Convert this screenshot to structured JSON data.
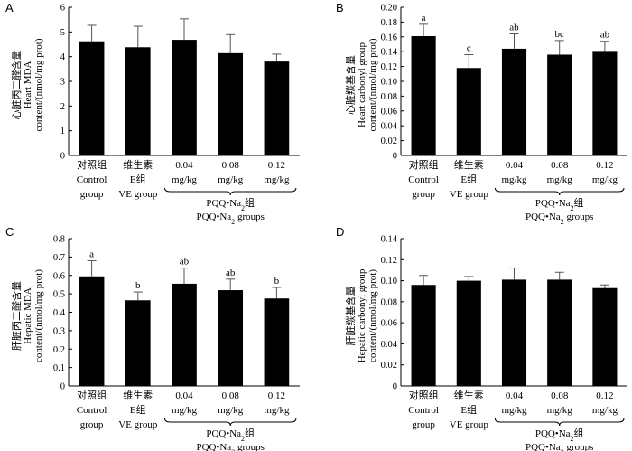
{
  "chart_data": [
    {
      "type": "bar",
      "panel": "A",
      "ylabel": [
        "心脏丙二醛含量",
        "Heart MDA",
        "content/(nmol/mg prot)"
      ],
      "ylim": [
        0,
        6
      ],
      "yticks": [
        0,
        1,
        2,
        3,
        4,
        5,
        6
      ],
      "ytick_labels": [
        "0",
        "1",
        "2",
        "3",
        "4",
        "5",
        "6"
      ],
      "values": [
        4.62,
        4.38,
        4.68,
        4.14,
        3.8
      ],
      "errors": [
        0.65,
        0.85,
        0.85,
        0.75,
        0.3
      ],
      "letters": [
        "",
        "",
        "",
        "",
        ""
      ]
    },
    {
      "type": "bar",
      "panel": "B",
      "ylabel": [
        "心脏羰基含量",
        "Heart carbonyl group",
        "content/(nmol/mg prot)"
      ],
      "ylim": [
        0,
        0.2
      ],
      "yticks": [
        0,
        0.02,
        0.04,
        0.06,
        0.08,
        0.1,
        0.12,
        0.14,
        0.16,
        0.18,
        0.2
      ],
      "ytick_labels": [
        "0",
        "0.02",
        "0.04",
        "0.06",
        "0.08",
        "0.10",
        "0.12",
        "0.14",
        "0.16",
        "0.18",
        "0.20"
      ],
      "values": [
        0.161,
        0.118,
        0.144,
        0.136,
        0.141
      ],
      "errors": [
        0.016,
        0.018,
        0.02,
        0.019,
        0.013
      ],
      "letters": [
        "a",
        "c",
        "ab",
        "bc",
        "ab"
      ]
    },
    {
      "type": "bar",
      "panel": "C",
      "ylabel": [
        "肝脏丙二醛含量",
        "Hepatic MDA",
        "content/(nmol/mg prot)"
      ],
      "ylim": [
        0,
        0.8
      ],
      "yticks": [
        0,
        0.1,
        0.2,
        0.3,
        0.4,
        0.5,
        0.6,
        0.7,
        0.8
      ],
      "ytick_labels": [
        "0",
        "0.1",
        "0.2",
        "0.3",
        "0.4",
        "0.5",
        "0.6",
        "0.7",
        "0.8"
      ],
      "values": [
        0.595,
        0.465,
        0.555,
        0.52,
        0.475
      ],
      "errors": [
        0.085,
        0.045,
        0.085,
        0.06,
        0.06
      ],
      "letters": [
        "a",
        "b",
        "ab",
        "ab",
        "b"
      ]
    },
    {
      "type": "bar",
      "panel": "D",
      "ylabel": [
        "肝脏羰基含量",
        "Hepatic carbonyl group",
        "content/(nmol/mg prot)"
      ],
      "ylim": [
        0,
        0.14
      ],
      "yticks": [
        0,
        0.02,
        0.04,
        0.06,
        0.08,
        0.1,
        0.12,
        0.14
      ],
      "ytick_labels": [
        "0",
        "0.02",
        "0.04",
        "0.06",
        "0.08",
        "0.10",
        "0.12",
        "0.14"
      ],
      "values": [
        0.096,
        0.1,
        0.101,
        0.101,
        0.093
      ],
      "errors": [
        0.009,
        0.004,
        0.011,
        0.007,
        0.003
      ],
      "letters": [
        "",
        "",
        "",
        "",
        ""
      ]
    }
  ],
  "categories": {
    "line1": [
      "对照组",
      "维生素",
      "0.04",
      "0.08",
      "0.12"
    ],
    "line2": [
      "Control",
      "E组",
      "mg/kg",
      "mg/kg",
      "mg/kg"
    ],
    "line3": [
      "group",
      "VE group"
    ],
    "pqq_cn": "PQQ•Na",
    "pqq_cn_sub": "2",
    "pqq_cn_suffix": "组",
    "pqq_en": "PQQ•Na",
    "pqq_en_sub": "2",
    "pqq_en_suffix": " groups"
  }
}
